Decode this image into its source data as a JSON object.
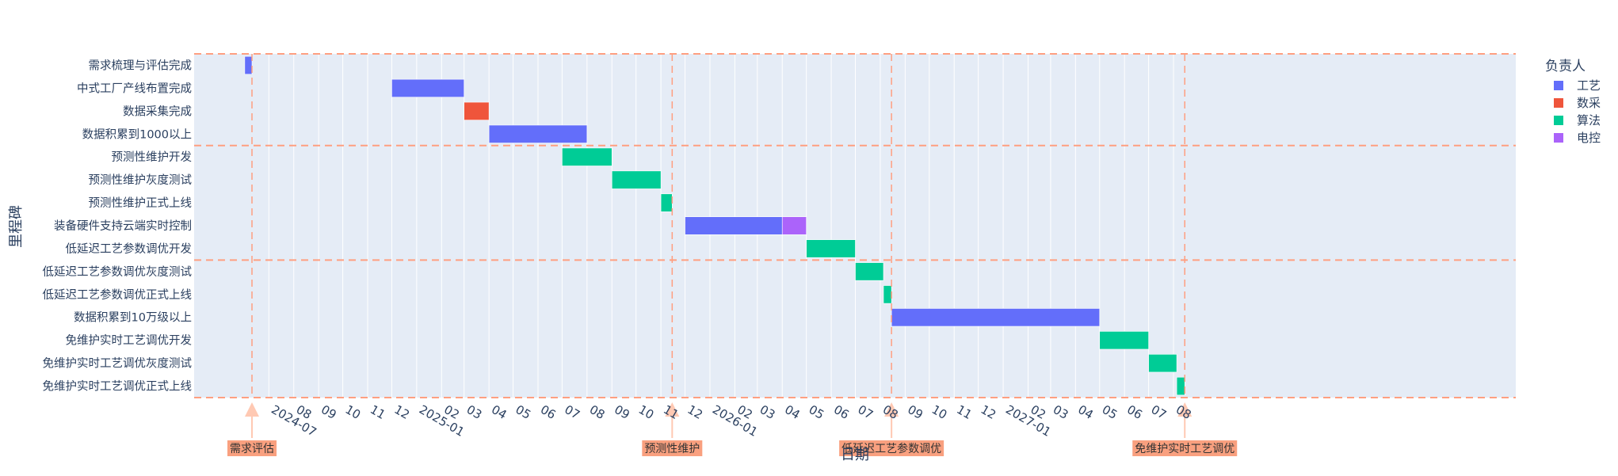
{
  "chart_data": {
    "type": "gantt",
    "title": "",
    "xlabel": "日期",
    "ylabel": "里程碑",
    "x_axis": {
      "type": "date",
      "range": [
        "2024-03-30",
        "2028-09-30"
      ],
      "tick_labels": [
        {
          "date": "2024-07-01",
          "label": "2024-07"
        },
        {
          "date": "2024-08-01",
          "label": "08"
        },
        {
          "date": "2024-09-01",
          "label": "09"
        },
        {
          "date": "2024-10-01",
          "label": "10"
        },
        {
          "date": "2024-11-01",
          "label": "11"
        },
        {
          "date": "2024-12-01",
          "label": "12"
        },
        {
          "date": "2025-01-01",
          "label": "2025-01"
        },
        {
          "date": "2025-02-01",
          "label": "02"
        },
        {
          "date": "2025-03-01",
          "label": "03"
        },
        {
          "date": "2025-04-01",
          "label": "04"
        },
        {
          "date": "2025-05-01",
          "label": "05"
        },
        {
          "date": "2025-06-01",
          "label": "06"
        },
        {
          "date": "2025-07-01",
          "label": "07"
        },
        {
          "date": "2025-08-01",
          "label": "08"
        },
        {
          "date": "2025-09-01",
          "label": "09"
        },
        {
          "date": "2025-10-01",
          "label": "10"
        },
        {
          "date": "2025-11-01",
          "label": "11"
        },
        {
          "date": "2025-12-01",
          "label": "12"
        },
        {
          "date": "2026-01-01",
          "label": "2026-01"
        },
        {
          "date": "2026-02-01",
          "label": "02"
        },
        {
          "date": "2026-03-01",
          "label": "03"
        },
        {
          "date": "2026-04-01",
          "label": "04"
        },
        {
          "date": "2026-05-01",
          "label": "05"
        },
        {
          "date": "2026-06-01",
          "label": "06"
        },
        {
          "date": "2026-07-01",
          "label": "07"
        },
        {
          "date": "2026-08-01",
          "label": "08"
        },
        {
          "date": "2026-09-01",
          "label": "09"
        },
        {
          "date": "2026-10-01",
          "label": "10"
        },
        {
          "date": "2026-11-01",
          "label": "11"
        },
        {
          "date": "2026-12-01",
          "label": "12"
        },
        {
          "date": "2027-01-01",
          "label": "2027-01"
        },
        {
          "date": "2027-02-01",
          "label": "02"
        },
        {
          "date": "2027-03-01",
          "label": "03"
        },
        {
          "date": "2027-04-01",
          "label": "04"
        },
        {
          "date": "2027-05-01",
          "label": "05"
        },
        {
          "date": "2027-06-01",
          "label": "06"
        },
        {
          "date": "2027-07-01",
          "label": "07"
        },
        {
          "date": "2027-08-01",
          "label": "08"
        }
      ]
    },
    "categories": [
      "需求梳理与评估完成",
      "中式工厂产线布置完成",
      "数据采集完成",
      "数据积累到1000以上",
      "预测性维护开发",
      "预测性维护灰度测试",
      "预测性维护正式上线",
      "装备硬件支持云端实时控制",
      "低延迟工艺参数调优开发",
      "低延迟工艺参数调优灰度测试",
      "低延迟工艺参数调优正式上线",
      "数据积累到10万级以上",
      "免维护实时工艺调优开发",
      "免维护实时工艺调优灰度测试",
      "免维护实时工艺调优正式上线"
    ],
    "legend": {
      "title": "负责人",
      "position": "top-right",
      "entries": [
        {
          "name": "工艺",
          "color": "#636efa"
        },
        {
          "name": "数采",
          "color": "#ef553b"
        },
        {
          "name": "算法",
          "color": "#00cc96"
        },
        {
          "name": "电控",
          "color": "#ab63fa"
        }
      ]
    },
    "tasks": [
      {
        "task": "需求梳理与评估完成",
        "start": "2024-06-01",
        "end": "2024-06-10",
        "owner": "工艺"
      },
      {
        "task": "中式工厂产线布置完成",
        "start": "2024-12-01",
        "end": "2025-03-01",
        "owner": "工艺"
      },
      {
        "task": "数据采集完成",
        "start": "2025-03-01",
        "end": "2025-04-01",
        "owner": "数采"
      },
      {
        "task": "数据积累到1000以上",
        "start": "2025-04-01",
        "end": "2025-08-01",
        "owner": "工艺"
      },
      {
        "task": "预测性维护开发",
        "start": "2025-07-01",
        "end": "2025-09-01",
        "owner": "算法"
      },
      {
        "task": "预测性维护灰度测试",
        "start": "2025-09-01",
        "end": "2025-11-01",
        "owner": "算法"
      },
      {
        "task": "预测性维护正式上线",
        "start": "2025-11-01",
        "end": "2025-11-15",
        "owner": "算法"
      },
      {
        "task": "装备硬件支持云端实时控制",
        "start": "2025-12-01",
        "end": "2026-04-01",
        "owner": "工艺"
      },
      {
        "task": "装备硬件支持云端实时控制",
        "start": "2026-04-01",
        "end": "2026-05-01",
        "owner": "电控"
      },
      {
        "task": "低延迟工艺参数调优开发",
        "start": "2026-05-01",
        "end": "2026-07-01",
        "owner": "算法"
      },
      {
        "task": "低延迟工艺参数调优灰度测试",
        "start": "2026-07-01",
        "end": "2026-08-05",
        "owner": "算法"
      },
      {
        "task": "低延迟工艺参数调优正式上线",
        "start": "2026-08-05",
        "end": "2026-08-15",
        "owner": "算法"
      },
      {
        "task": "数据积累到10万级以上",
        "start": "2026-08-15",
        "end": "2027-05-01",
        "owner": "工艺"
      },
      {
        "task": "免维护实时工艺调优开发",
        "start": "2027-05-01",
        "end": "2027-07-01",
        "owner": "算法"
      },
      {
        "task": "免维护实时工艺调优灰度测试",
        "start": "2027-07-01",
        "end": "2027-08-05",
        "owner": "算法"
      },
      {
        "task": "免维护实时工艺调优正式上线",
        "start": "2027-08-05",
        "end": "2027-08-15",
        "owner": "算法"
      }
    ],
    "milestones": [
      {
        "label": "需求评估",
        "date": "2024-06-10"
      },
      {
        "label": "预测性维护",
        "date": "2025-11-15"
      },
      {
        "label": "低延迟工艺参数调优",
        "date": "2026-08-15"
      },
      {
        "label": "免维护实时工艺调优",
        "date": "2027-08-15"
      }
    ],
    "phase_dividers_after_rows": [
      3,
      8
    ],
    "colors": {
      "plot_bg": "#e5ecf6",
      "grid": "#ffffff",
      "divider": "#ff9f80",
      "milestone_arrow": "#ffc9b3",
      "milestone_label_bg": "#f9a07f",
      "milestone_label_text": "#333333",
      "axis_text": "#2a3f5f"
    }
  }
}
